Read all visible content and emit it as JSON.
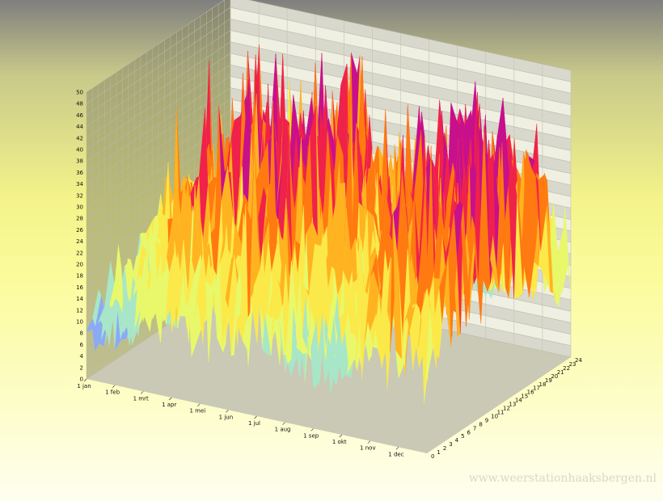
{
  "chart_data": {
    "type": "surface-3d",
    "title": "",
    "xlabel": "",
    "ylabel": "",
    "zlabel": "",
    "x_tick_labels": [
      "1 jan",
      "1 feb",
      "1 mrt",
      "1 apr",
      "1 mei",
      "1 jun",
      "1 jul",
      "1 aug",
      "1 sep",
      "1 okt",
      "1 nov",
      "1 dec"
    ],
    "y_tick_labels": [
      "0",
      "1",
      "2",
      "3",
      "4",
      "5",
      "6",
      "7",
      "8",
      "9",
      "10",
      "11",
      "12",
      "13",
      "14",
      "15",
      "16",
      "17",
      "18",
      "19",
      "20",
      "21",
      "22",
      "23",
      "24"
    ],
    "z_tick_labels": [
      "0",
      "2",
      "4",
      "6",
      "8",
      "10",
      "12",
      "14",
      "16",
      "18",
      "20",
      "22",
      "24",
      "26",
      "28",
      "30",
      "32",
      "34",
      "36",
      "38",
      "40",
      "42",
      "44",
      "46",
      "48",
      "50"
    ],
    "zlim": [
      0,
      50
    ],
    "grid": true,
    "colors": [
      "#7f86f6",
      "#8aaaf4",
      "#a8e6c8",
      "#e8f86a",
      "#fbe94a",
      "#ffb321",
      "#ff7a10",
      "#f0224a",
      "#c8108c"
    ],
    "daily_max_profile": [
      {
        "date": "1 jan",
        "value": 18
      },
      {
        "date": "1 feb",
        "value": 26
      },
      {
        "date": "1 mrt",
        "value": 34
      },
      {
        "date": "1 apr",
        "value": 40
      },
      {
        "date": "1 mei",
        "value": 38
      },
      {
        "date": "1 jun",
        "value": 44
      },
      {
        "date": "1 jul",
        "value": 38
      },
      {
        "date": "1 aug",
        "value": 32
      },
      {
        "date": "1 sep",
        "value": 28
      },
      {
        "date": "1 okt",
        "value": 44
      },
      {
        "date": "1 nov",
        "value": 46
      },
      {
        "date": "1 dec",
        "value": 42
      }
    ]
  },
  "watermark": "www.weerstationhaaksbergen.nl"
}
